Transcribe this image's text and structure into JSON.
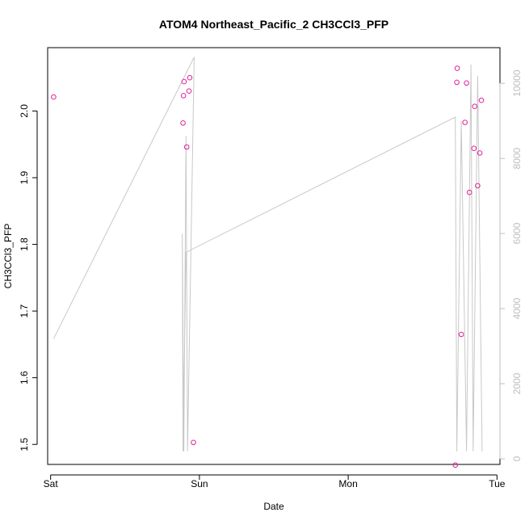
{
  "chart_data": {
    "type": "scatter",
    "title": "ATOM4 Northeast_Pacific_2 CH3CCl3_PFP",
    "xlabel": "Date",
    "ylabel": "CH3CCl3_PFP",
    "x_unit": "days from Sat 00:00",
    "xlim": [
      -0.02,
      3.02
    ],
    "x_ticks": [
      {
        "value": 0,
        "label": "Sat"
      },
      {
        "value": 1,
        "label": "Sun"
      },
      {
        "value": 2,
        "label": "Mon"
      },
      {
        "value": 3,
        "label": "Tue"
      }
    ],
    "y_left": {
      "lim": [
        1.47,
        2.095
      ],
      "ticks": [
        1.5,
        1.6,
        1.7,
        1.8,
        1.9,
        2.0
      ],
      "tick_labels": [
        "1.5",
        "1.6",
        "1.7",
        "1.8",
        "1.9",
        "2.0"
      ]
    },
    "y_right": {
      "lim": [
        -150,
        10950
      ],
      "ticks": [
        0,
        2000,
        4000,
        6000,
        8000,
        10000
      ],
      "tick_labels": [
        "0",
        "2000",
        "4000",
        "6000",
        "8000",
        "10000"
      ]
    },
    "grid": false,
    "series": [
      {
        "kind": "points",
        "axis": "left",
        "color": "#e0229a",
        "points": [
          {
            "x": 0.02,
            "y": 2.021
          },
          {
            "x": 0.89,
            "y": 1.982
          },
          {
            "x": 0.893,
            "y": 2.023
          },
          {
            "x": 0.897,
            "y": 2.044
          },
          {
            "x": 0.915,
            "y": 1.946
          },
          {
            "x": 0.93,
            "y": 2.03
          },
          {
            "x": 0.935,
            "y": 2.05
          },
          {
            "x": 0.96,
            "y": 1.503
          },
          {
            "x": 2.72,
            "y": 1.469
          },
          {
            "x": 2.73,
            "y": 2.043
          },
          {
            "x": 2.733,
            "y": 2.064
          },
          {
            "x": 2.76,
            "y": 1.665
          },
          {
            "x": 2.785,
            "y": 1.983
          },
          {
            "x": 2.795,
            "y": 2.042
          },
          {
            "x": 2.815,
            "y": 1.878
          },
          {
            "x": 2.845,
            "y": 1.944
          },
          {
            "x": 2.85,
            "y": 2.007
          },
          {
            "x": 2.87,
            "y": 1.888
          },
          {
            "x": 2.885,
            "y": 1.937
          },
          {
            "x": 2.895,
            "y": 2.016
          }
        ]
      },
      {
        "kind": "line",
        "axis": "right",
        "color": "#c8c8c8",
        "points": [
          {
            "x": 0.02,
            "y": 3200
          },
          {
            "x": 0.965,
            "y": 10700
          },
          {
            "x": 0.92,
            "y": 200
          },
          {
            "x": 0.91,
            "y": 8600
          },
          {
            "x": 0.895,
            "y": 200
          },
          {
            "x": 0.885,
            "y": 6000
          },
          {
            "x": 0.89,
            "y": 200
          },
          {
            "x": 0.91,
            "y": 5500
          },
          {
            "x": 2.72,
            "y": 9100
          },
          {
            "x": 2.73,
            "y": 200
          },
          {
            "x": 2.76,
            "y": 9000
          },
          {
            "x": 2.795,
            "y": 200
          },
          {
            "x": 2.825,
            "y": 10500
          },
          {
            "x": 2.84,
            "y": 200
          },
          {
            "x": 2.87,
            "y": 10200
          },
          {
            "x": 2.9,
            "y": 200
          }
        ]
      }
    ]
  }
}
